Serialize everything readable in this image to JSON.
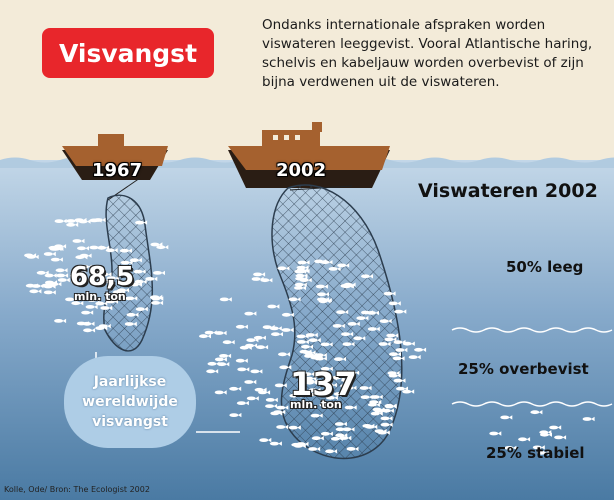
{
  "header": {
    "title": "Visvangst",
    "intro": "Ondanks internationale afspraken worden viswateren leeggevist. Vooral Atlantische haring, schelvis en kabeljauw worden overbevist of zijn bijna verdwenen uit de viswateren."
  },
  "catches": [
    {
      "year": "1967",
      "value": "68,5",
      "unit": "mln. ton"
    },
    {
      "year": "2002",
      "value": "137",
      "unit": "mln. ton"
    }
  ],
  "callout": {
    "line1": "Jaarlijkse",
    "line2": "wereldwijde",
    "line3": "visvangst"
  },
  "viswateren": {
    "title": "Viswateren 2002",
    "bands": [
      {
        "label": "50% leeg",
        "percent": 50
      },
      {
        "label": "25% overbevist",
        "percent": 25
      },
      {
        "label": "25% stabiel",
        "percent": 25
      }
    ]
  },
  "credit": "Kolle, Ode/ Bron: The Ecologist 2002",
  "colors": {
    "red": "#e8262b",
    "sea_top": "#bcd3e5",
    "sea_bottom": "#4d7ea7",
    "boat": "#a5612f",
    "hull": "#2a1d14"
  }
}
